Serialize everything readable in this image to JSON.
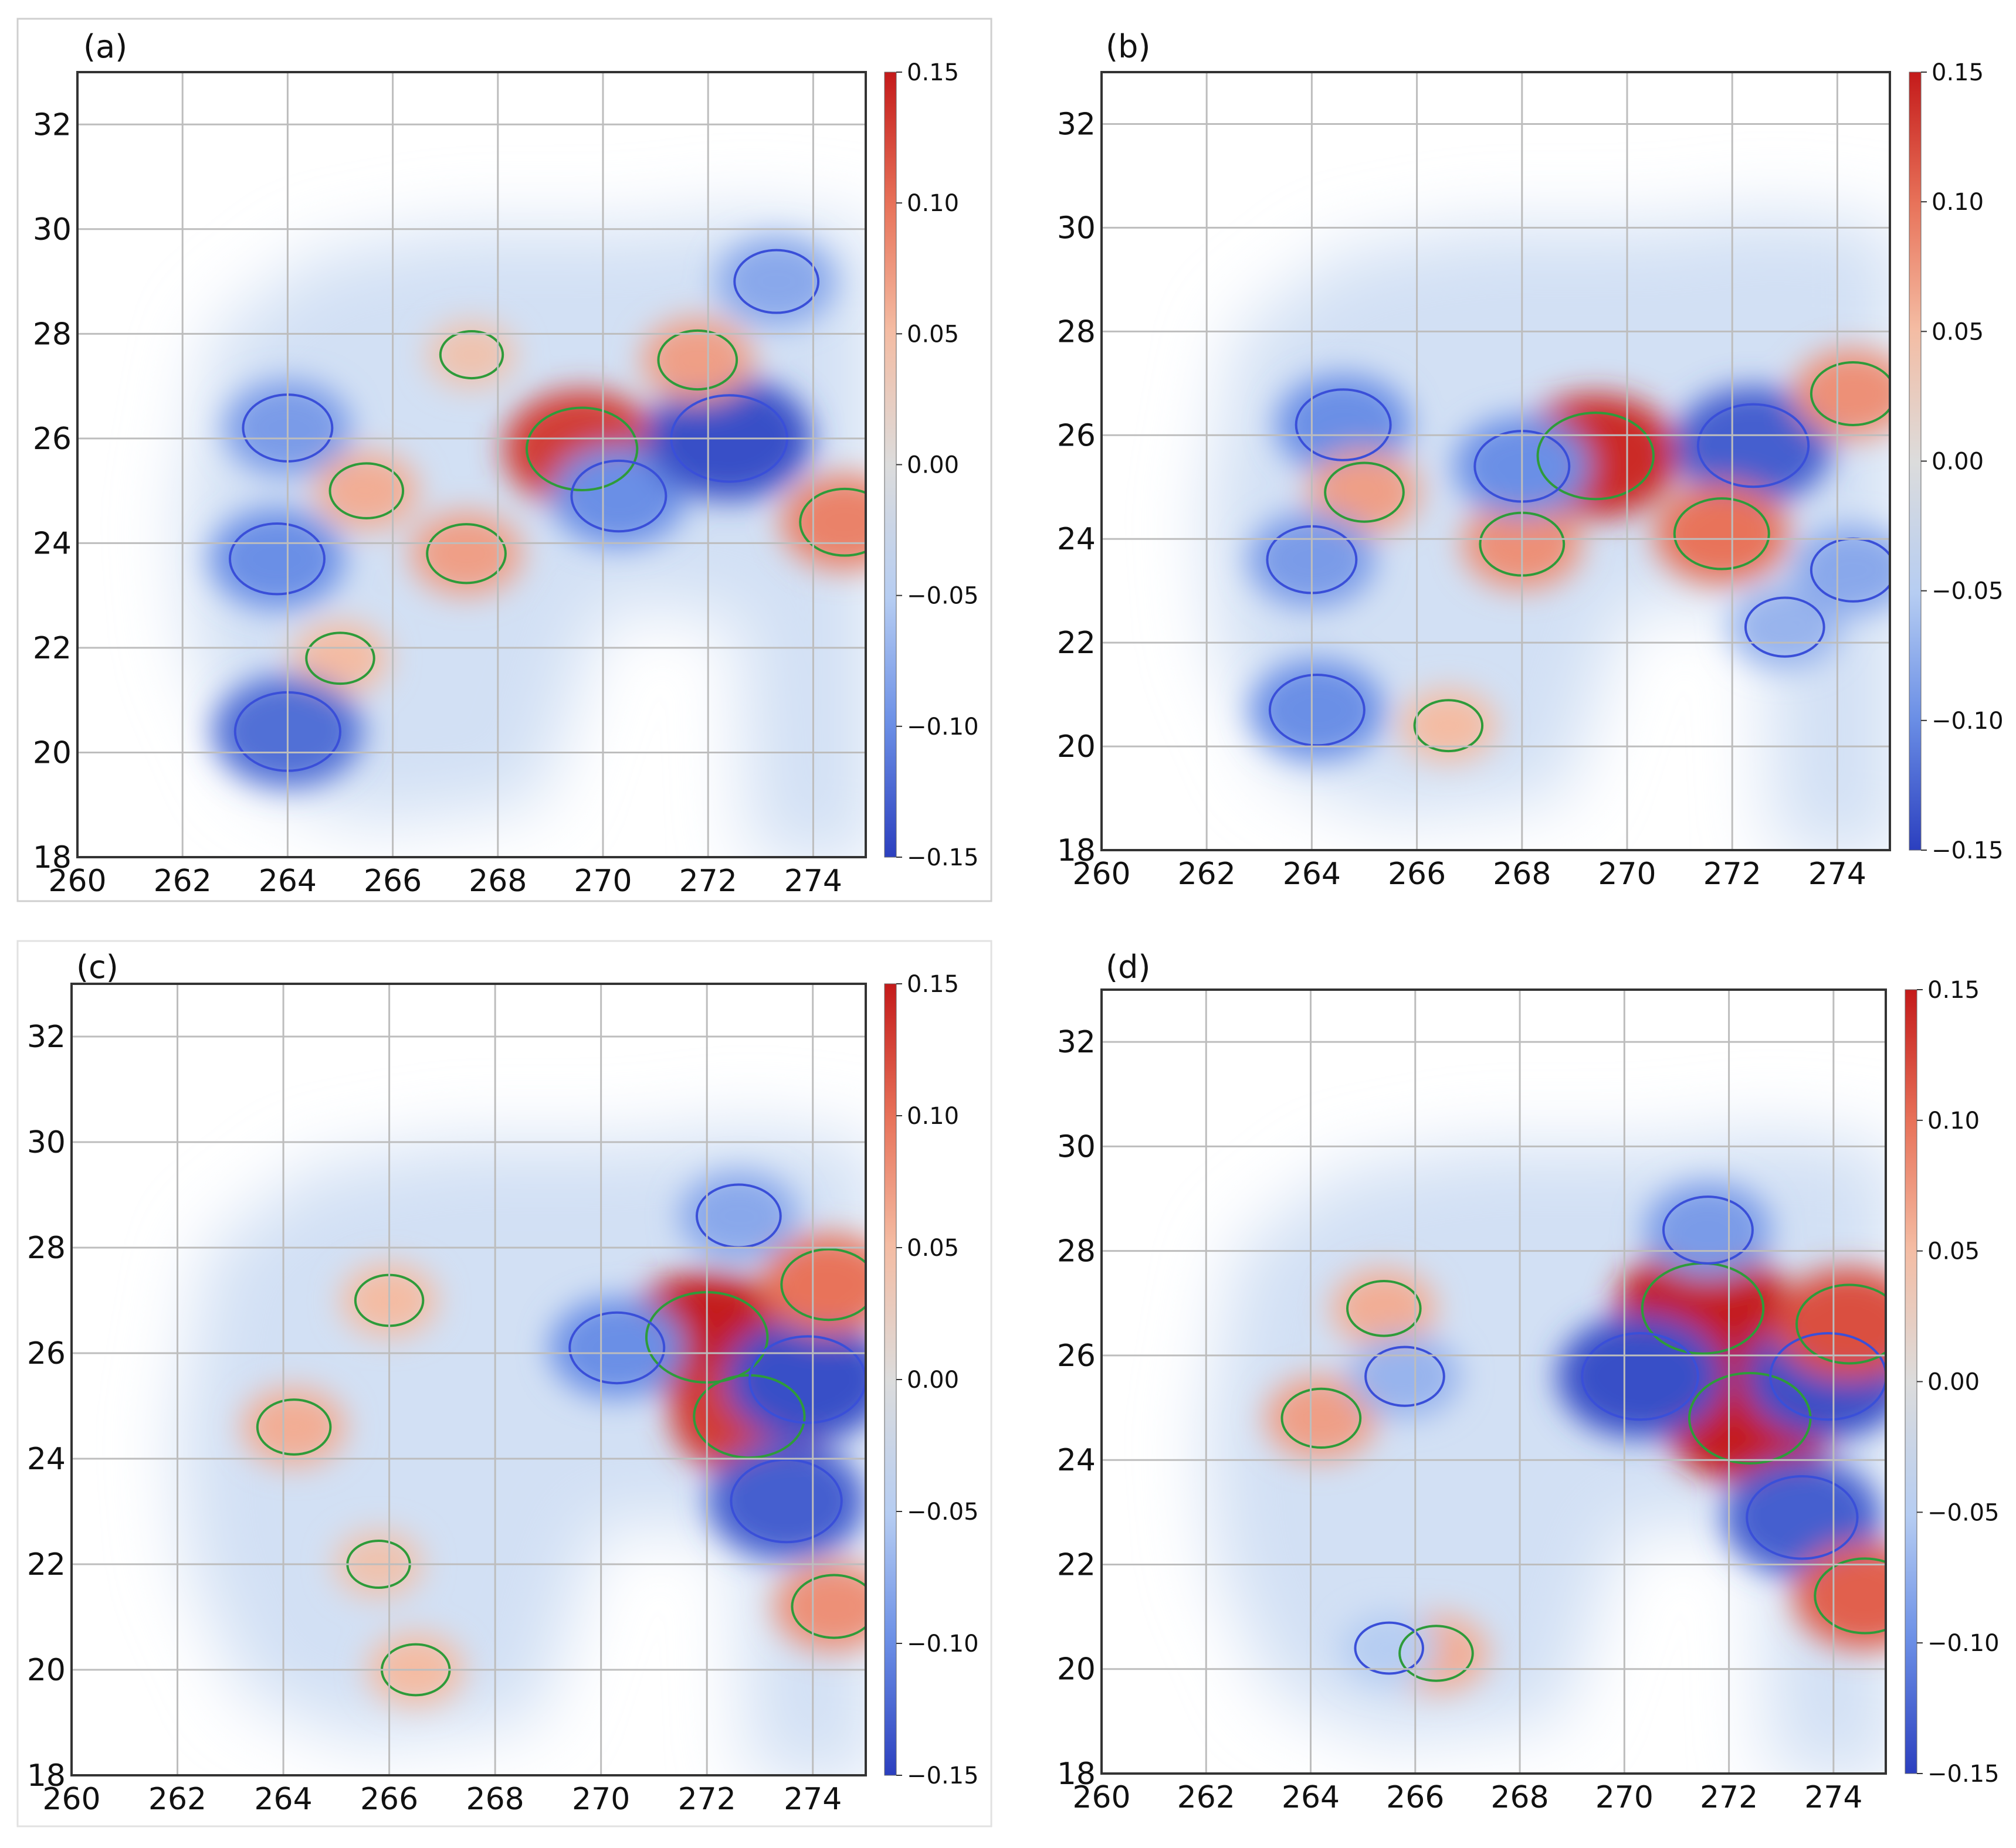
{
  "figure": {
    "colorbar": {
      "ticks": [
        "0.15",
        "0.10",
        "0.05",
        "0.00",
        "−0.05",
        "−0.10",
        "−0.15"
      ],
      "values": [
        0.15,
        0.1,
        0.05,
        0.0,
        -0.05,
        -0.1,
        -0.15
      ],
      "min": -0.15,
      "max": 0.15,
      "colors": [
        "#2b3fbf",
        "#6b8fe6",
        "#b6cdf2",
        "#dcdcdc",
        "#f4bca3",
        "#e8735a",
        "#c41a1a"
      ]
    },
    "contour_colors": {
      "positive": "#2e9b3a",
      "negative": "#3a4fd8"
    }
  },
  "chart_data": [
    {
      "type": "heatmap",
      "panel": "(a)",
      "xlabel": "",
      "ylabel": "",
      "xlim": [
        260,
        275
      ],
      "ylim": [
        18,
        33
      ],
      "xticks": [
        "260",
        "262",
        "264",
        "266",
        "268",
        "270",
        "272",
        "274"
      ],
      "yticks": [
        "18",
        "20",
        "22",
        "24",
        "26",
        "28",
        "30",
        "32"
      ],
      "grid": true,
      "features": [
        {
          "x": 264.0,
          "y": 26.2,
          "value": -0.09
        },
        {
          "x": 263.8,
          "y": 23.7,
          "value": -0.1
        },
        {
          "x": 265.5,
          "y": 25.0,
          "value": 0.06
        },
        {
          "x": 267.5,
          "y": 27.6,
          "value": 0.04
        },
        {
          "x": 267.4,
          "y": 23.8,
          "value": 0.07
        },
        {
          "x": 269.6,
          "y": 25.8,
          "value": 0.13
        },
        {
          "x": 270.3,
          "y": 24.9,
          "value": -0.1
        },
        {
          "x": 272.4,
          "y": 26.0,
          "value": -0.14
        },
        {
          "x": 271.8,
          "y": 27.5,
          "value": 0.07
        },
        {
          "x": 274.6,
          "y": 24.4,
          "value": 0.09
        },
        {
          "x": 265.0,
          "y": 21.8,
          "value": 0.05
        },
        {
          "x": 264.0,
          "y": 20.4,
          "value": -0.12
        },
        {
          "x": 273.3,
          "y": 29.0,
          "value": -0.08
        }
      ]
    },
    {
      "type": "heatmap",
      "panel": "(b)",
      "xlabel": "",
      "ylabel": "",
      "xlim": [
        260,
        275
      ],
      "ylim": [
        18,
        33
      ],
      "xticks": [
        "260",
        "262",
        "264",
        "266",
        "268",
        "270",
        "272",
        "274"
      ],
      "yticks": [
        "18",
        "20",
        "22",
        "24",
        "26",
        "28",
        "30",
        "32"
      ],
      "grid": true,
      "features": [
        {
          "x": 264.6,
          "y": 26.2,
          "value": -0.1
        },
        {
          "x": 265.0,
          "y": 24.9,
          "value": 0.07
        },
        {
          "x": 264.0,
          "y": 23.6,
          "value": -0.09
        },
        {
          "x": 264.1,
          "y": 20.7,
          "value": -0.1
        },
        {
          "x": 266.6,
          "y": 20.4,
          "value": 0.05
        },
        {
          "x": 268.0,
          "y": 23.9,
          "value": 0.08
        },
        {
          "x": 269.4,
          "y": 25.6,
          "value": 0.14
        },
        {
          "x": 268.0,
          "y": 25.4,
          "value": -0.1
        },
        {
          "x": 272.4,
          "y": 25.8,
          "value": -0.13
        },
        {
          "x": 271.8,
          "y": 24.1,
          "value": 0.1
        },
        {
          "x": 273.0,
          "y": 22.3,
          "value": -0.07
        },
        {
          "x": 274.3,
          "y": 26.8,
          "value": 0.08
        },
        {
          "x": 274.3,
          "y": 23.4,
          "value": -0.08
        }
      ]
    },
    {
      "type": "heatmap",
      "panel": "(c)",
      "xlabel": "",
      "ylabel": "",
      "xlim": [
        260,
        275
      ],
      "ylim": [
        18,
        33
      ],
      "xticks": [
        "260",
        "262",
        "264",
        "266",
        "268",
        "270",
        "272",
        "274"
      ],
      "yticks": [
        "18",
        "20",
        "22",
        "24",
        "26",
        "28",
        "30",
        "32"
      ],
      "grid": true,
      "features": [
        {
          "x": 272.0,
          "y": 26.3,
          "value": 0.15
        },
        {
          "x": 272.8,
          "y": 24.8,
          "value": 0.13
        },
        {
          "x": 273.9,
          "y": 25.5,
          "value": -0.14
        },
        {
          "x": 273.5,
          "y": 23.2,
          "value": -0.13
        },
        {
          "x": 270.3,
          "y": 26.1,
          "value": -0.1
        },
        {
          "x": 272.6,
          "y": 28.6,
          "value": -0.08
        },
        {
          "x": 274.3,
          "y": 27.3,
          "value": 0.1
        },
        {
          "x": 274.4,
          "y": 21.2,
          "value": 0.08
        },
        {
          "x": 266.0,
          "y": 27.0,
          "value": 0.05
        },
        {
          "x": 264.2,
          "y": 24.6,
          "value": 0.06
        },
        {
          "x": 266.5,
          "y": 20.0,
          "value": 0.05
        },
        {
          "x": 265.8,
          "y": 22.0,
          "value": 0.04
        }
      ]
    },
    {
      "type": "heatmap",
      "panel": "(d)",
      "xlabel": "",
      "ylabel": "",
      "xlim": [
        260,
        275
      ],
      "ylim": [
        18,
        33
      ],
      "xticks": [
        "260",
        "262",
        "264",
        "266",
        "268",
        "270",
        "272",
        "274"
      ],
      "yticks": [
        "18",
        "20",
        "22",
        "24",
        "26",
        "28",
        "30",
        "32"
      ],
      "grid": true,
      "features": [
        {
          "x": 271.5,
          "y": 26.9,
          "value": 0.15
        },
        {
          "x": 272.4,
          "y": 24.8,
          "value": 0.15
        },
        {
          "x": 270.3,
          "y": 25.6,
          "value": -0.14
        },
        {
          "x": 273.9,
          "y": 25.6,
          "value": -0.14
        },
        {
          "x": 274.3,
          "y": 26.6,
          "value": 0.12
        },
        {
          "x": 273.4,
          "y": 22.9,
          "value": -0.13
        },
        {
          "x": 271.6,
          "y": 28.4,
          "value": -0.09
        },
        {
          "x": 274.6,
          "y": 21.4,
          "value": 0.11
        },
        {
          "x": 264.2,
          "y": 24.8,
          "value": 0.07
        },
        {
          "x": 265.4,
          "y": 26.9,
          "value": 0.06
        },
        {
          "x": 265.8,
          "y": 25.6,
          "value": -0.07
        },
        {
          "x": 266.4,
          "y": 20.3,
          "value": 0.06
        },
        {
          "x": 265.5,
          "y": 20.4,
          "value": -0.05
        }
      ]
    }
  ]
}
